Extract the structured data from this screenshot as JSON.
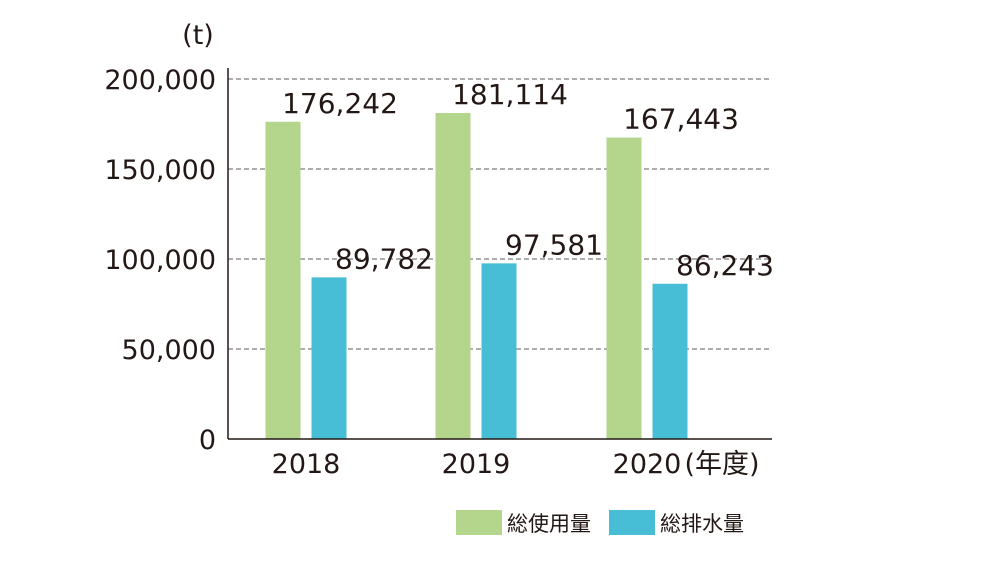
{
  "chart_data": {
    "type": "bar",
    "unit": "(t)",
    "categories": [
      "2018",
      "2019",
      "2020"
    ],
    "x_suffix": "(年度)",
    "ylim": [
      0,
      200000
    ],
    "y_ticks": [
      "0",
      "50,000",
      "100,000",
      "150,000",
      "200,000"
    ],
    "grid": "dashed horizontal",
    "legend_position": "bottom-right",
    "series": [
      {
        "name": "総使用量",
        "color": "#b3d58c",
        "values": [
          176242,
          181114,
          167443
        ],
        "labels": [
          "176,242",
          "181,114",
          "167,443"
        ]
      },
      {
        "name": "総排水量",
        "color": "#47bed6",
        "values": [
          89782,
          97581,
          86243
        ],
        "labels": [
          "89,782",
          "97,581",
          "86,243"
        ]
      }
    ]
  }
}
